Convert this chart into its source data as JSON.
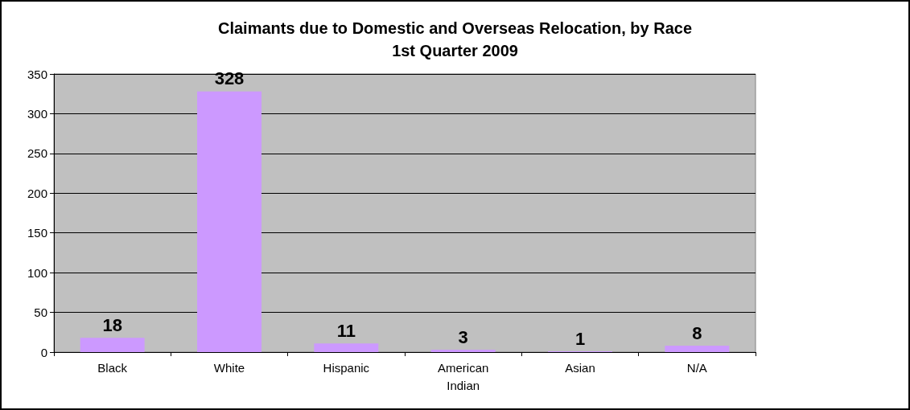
{
  "chart_data": {
    "type": "bar",
    "title": "Claimants due to Domestic and Overseas Relocation, by Race\n1st Quarter 2009",
    "categories": [
      "Black",
      "White",
      "Hispanic",
      "American Indian",
      "Asian",
      "N/A"
    ],
    "values": [
      18,
      328,
      11,
      3,
      1,
      8
    ],
    "color": "#cc99ff",
    "ylim": [
      0,
      350
    ],
    "yticks": [
      0,
      50,
      100,
      150,
      200,
      250,
      300,
      350
    ],
    "grid": "y",
    "data_labels": true
  }
}
